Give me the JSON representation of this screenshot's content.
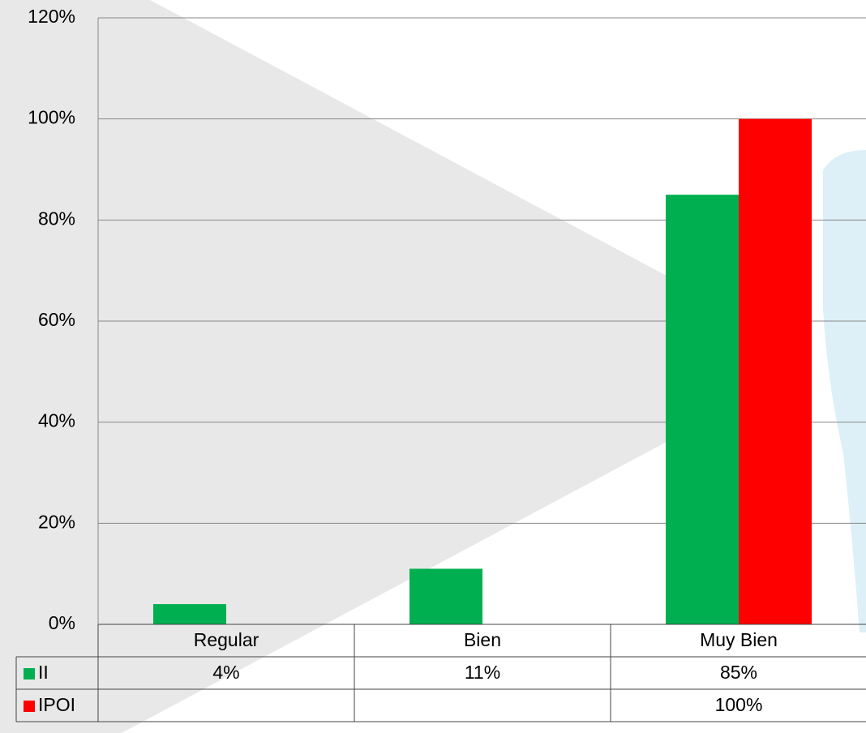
{
  "chart_data": {
    "type": "bar",
    "categories": [
      "Regular",
      "Bien",
      "Muy Bien"
    ],
    "series": [
      {
        "name": "II",
        "color": "#00b050",
        "values": [
          4,
          11,
          85
        ],
        "value_labels": [
          "4%",
          "11%",
          "85%"
        ]
      },
      {
        "name": "IPOI",
        "color": "#ff0000",
        "values": [
          null,
          null,
          100
        ],
        "value_labels": [
          null,
          null,
          "100%"
        ]
      }
    ],
    "ylim": [
      0,
      120
    ],
    "yticks": [
      {
        "value": 0,
        "label": "0%"
      },
      {
        "value": 20,
        "label": "20%"
      },
      {
        "value": 40,
        "label": "40%"
      },
      {
        "value": 60,
        "label": "60%"
      },
      {
        "value": 80,
        "label": "80%"
      },
      {
        "value": 100,
        "label": "100%"
      },
      {
        "value": 120,
        "label": "120%"
      }
    ],
    "grid": true
  }
}
